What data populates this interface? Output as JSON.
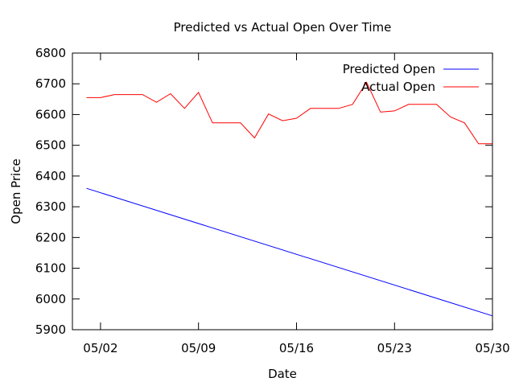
{
  "chart_data": {
    "type": "line",
    "title": "Predicted vs Actual Open Over Time",
    "xlabel": "Date",
    "ylabel": "Open Price",
    "ylim": [
      5900,
      6800
    ],
    "xlim": [
      "2025-05-01",
      "2025-05-30"
    ],
    "yticks": [
      5900,
      6000,
      6100,
      6200,
      6300,
      6400,
      6500,
      6600,
      6700,
      6800
    ],
    "xticks": [
      {
        "date": "2025-05-02",
        "label": "05/02"
      },
      {
        "date": "2025-05-09",
        "label": "05/09"
      },
      {
        "date": "2025-05-16",
        "label": "05/16"
      },
      {
        "date": "2025-05-23",
        "label": "05/23"
      },
      {
        "date": "2025-05-30",
        "label": "05/30"
      }
    ],
    "grid": false,
    "legend_position": "top-right",
    "series": [
      {
        "name": "Predicted Open",
        "color": "#0000ff",
        "points": [
          {
            "x": "2025-05-01",
            "y": 6360
          },
          {
            "x": "2025-05-30",
            "y": 5945
          }
        ]
      },
      {
        "name": "Actual Open",
        "color": "#ff0000",
        "points": [
          {
            "x": "2025-05-01",
            "y": 6655
          },
          {
            "x": "2025-05-02",
            "y": 6655
          },
          {
            "x": "2025-05-03",
            "y": 6665
          },
          {
            "x": "2025-05-04",
            "y": 6665
          },
          {
            "x": "2025-05-05",
            "y": 6665
          },
          {
            "x": "2025-05-06",
            "y": 6640
          },
          {
            "x": "2025-05-07",
            "y": 6668
          },
          {
            "x": "2025-05-08",
            "y": 6620
          },
          {
            "x": "2025-05-09",
            "y": 6672
          },
          {
            "x": "2025-05-10",
            "y": 6573
          },
          {
            "x": "2025-05-11",
            "y": 6573
          },
          {
            "x": "2025-05-12",
            "y": 6573
          },
          {
            "x": "2025-05-13",
            "y": 6524
          },
          {
            "x": "2025-05-14",
            "y": 6602
          },
          {
            "x": "2025-05-15",
            "y": 6580
          },
          {
            "x": "2025-05-16",
            "y": 6588
          },
          {
            "x": "2025-05-17",
            "y": 6620
          },
          {
            "x": "2025-05-18",
            "y": 6620
          },
          {
            "x": "2025-05-19",
            "y": 6620
          },
          {
            "x": "2025-05-20",
            "y": 6633
          },
          {
            "x": "2025-05-21",
            "y": 6705
          },
          {
            "x": "2025-05-22",
            "y": 6608
          },
          {
            "x": "2025-05-23",
            "y": 6612
          },
          {
            "x": "2025-05-24",
            "y": 6633
          },
          {
            "x": "2025-05-25",
            "y": 6633
          },
          {
            "x": "2025-05-26",
            "y": 6633
          },
          {
            "x": "2025-05-27",
            "y": 6592
          },
          {
            "x": "2025-05-28",
            "y": 6573
          },
          {
            "x": "2025-05-29",
            "y": 6505
          },
          {
            "x": "2025-05-30",
            "y": 6505
          }
        ]
      }
    ]
  }
}
